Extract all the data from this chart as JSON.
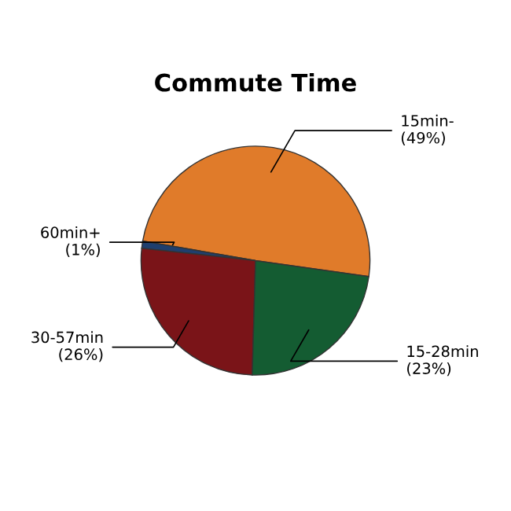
{
  "chart_data": {
    "type": "pie",
    "title": "Commute Time",
    "categories": [
      "15min-",
      "60min+",
      "30-57min",
      "15-28min"
    ],
    "values": [
      49,
      1,
      26,
      23
    ],
    "value_labels": [
      "(49%)",
      "(1%)",
      "(26%)",
      "(23%)"
    ],
    "colors": [
      "#e07b2a",
      "#1f3f6e",
      "#7a1418",
      "#145c32"
    ]
  }
}
